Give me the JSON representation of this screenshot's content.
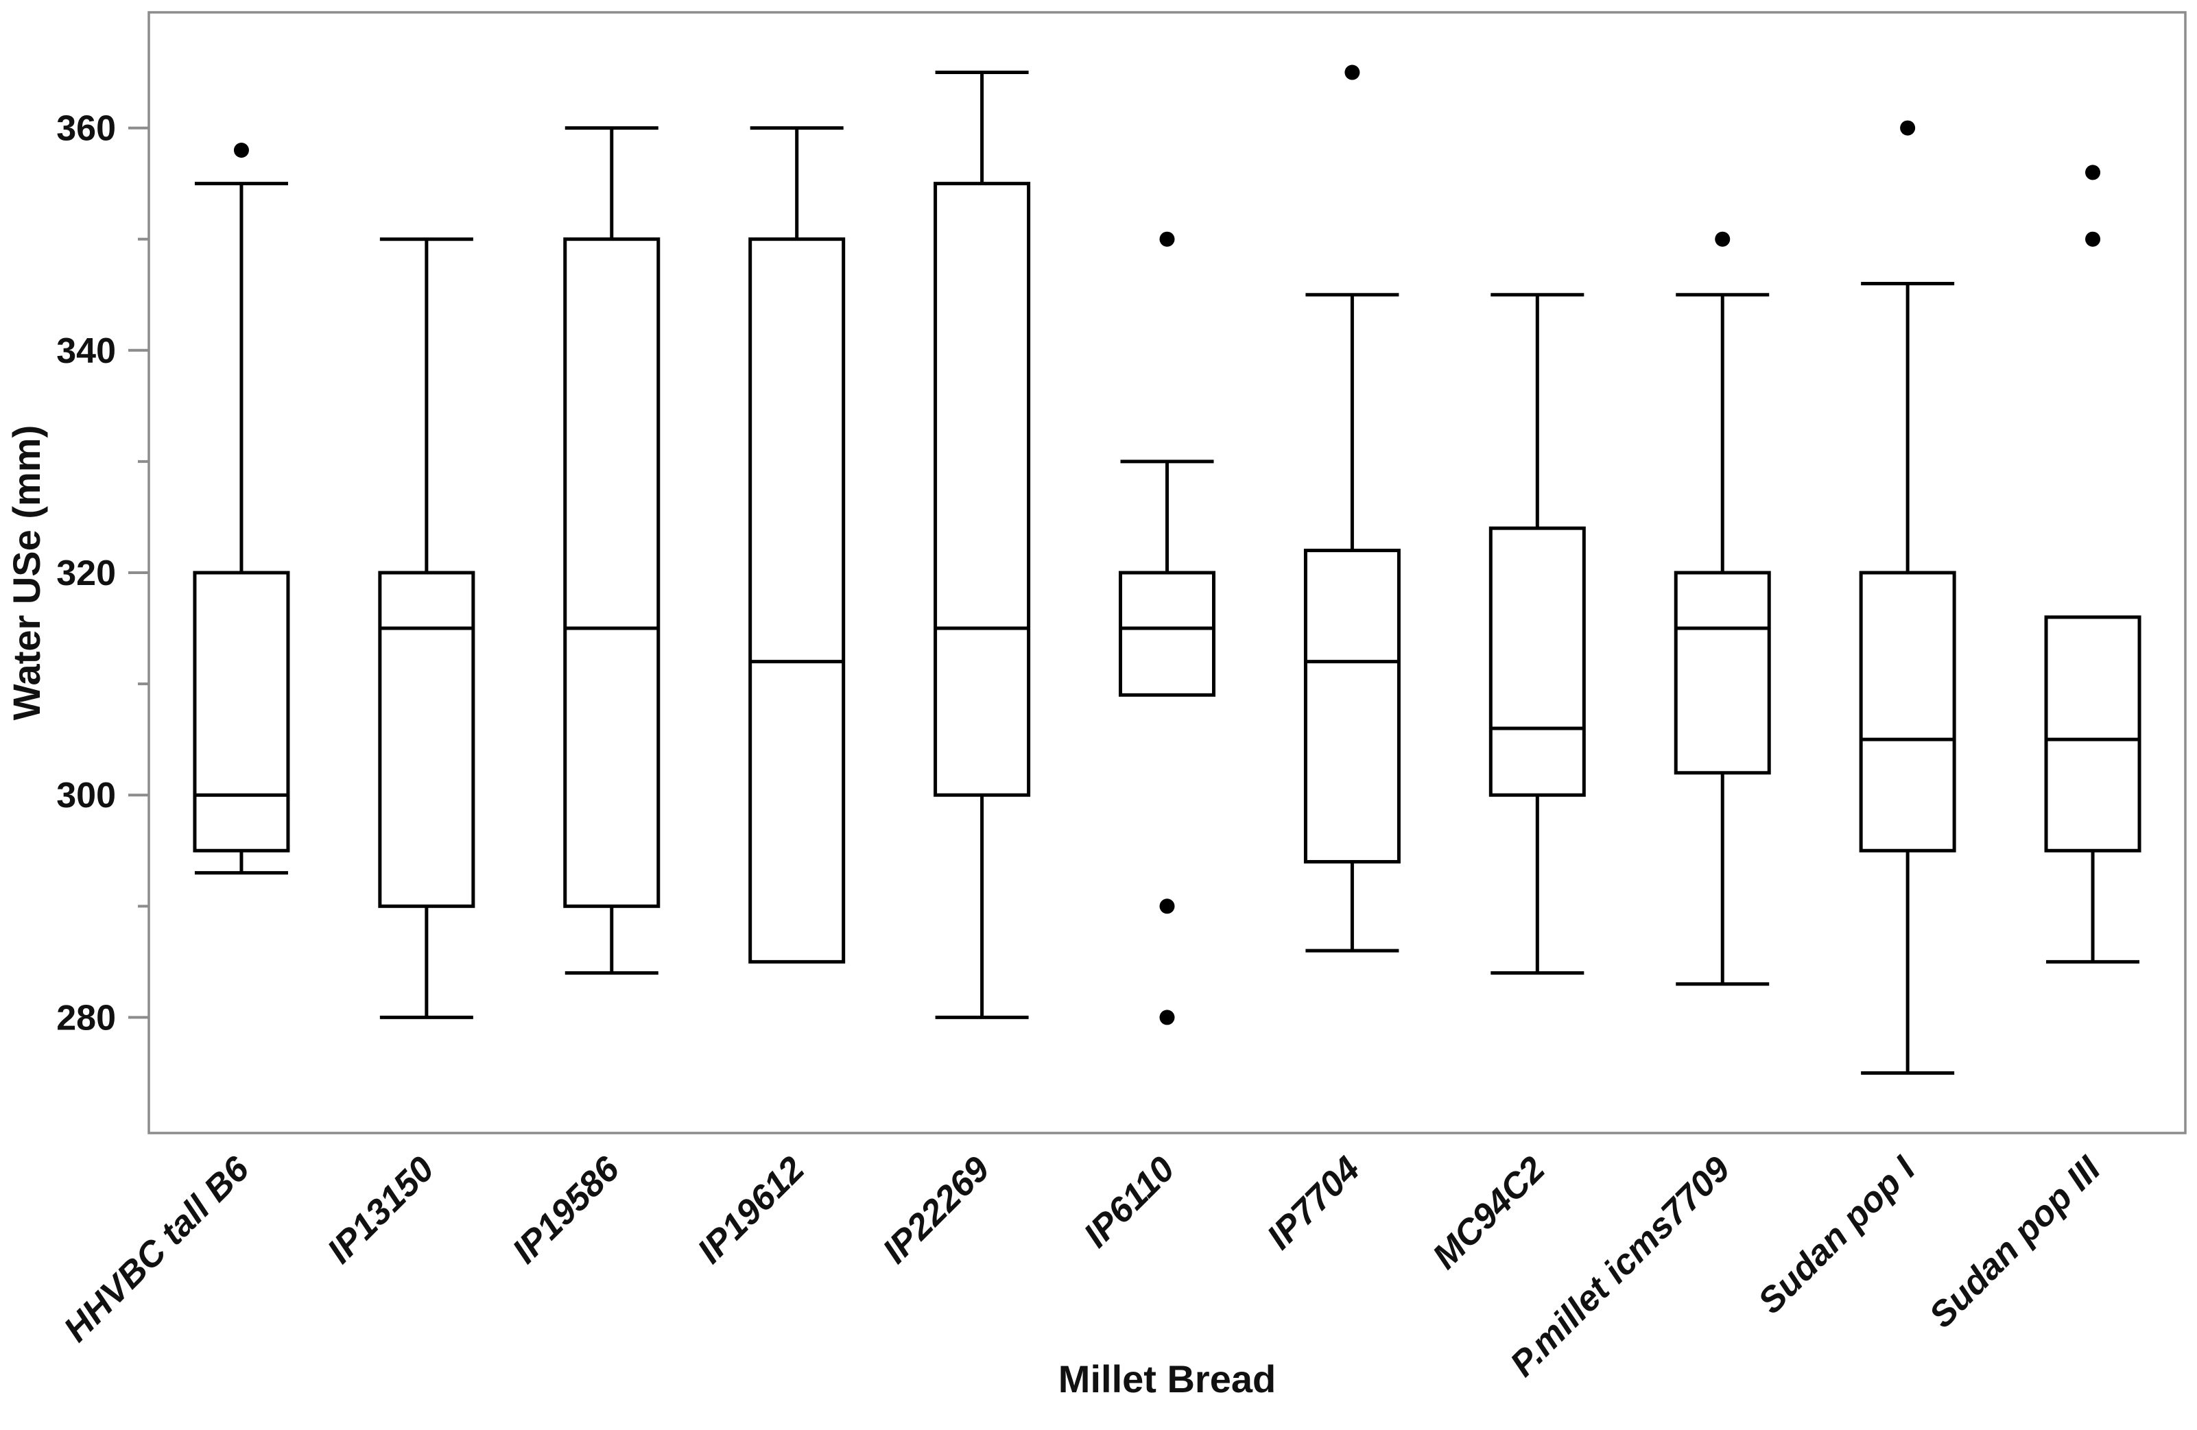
{
  "figure": {
    "kind": "statistical-boxplot-figure",
    "background_color": "#ffffff",
    "frame_color": "#8c8c8c",
    "box_stroke_color": "#000000",
    "outlier_color": "#000000"
  },
  "chart_data": {
    "type": "boxplot",
    "title": "",
    "xlabel": "Millet Bread",
    "ylabel": "Water USe (mm)",
    "ylim": [
      269.6,
      370.4
    ],
    "yticks_major": [
      280,
      300,
      320,
      340,
      360
    ],
    "yticks_minor": [
      290,
      310,
      330,
      350
    ],
    "grid": "off",
    "legend": "none",
    "categories": [
      "HHVBC tall B6",
      "IP13150",
      "IP19586",
      "IP19612",
      "IP22269",
      "IP6110",
      "IP7704",
      "MC94C2",
      "P.millet icms7709",
      "Sudan pop I",
      "Sudan pop III"
    ],
    "series": [
      {
        "name": "HHVBC tall B6",
        "whisker_low": 293,
        "q1": 295,
        "median": 300,
        "q3": 320,
        "whisker_high": 355,
        "outliers": [
          358
        ]
      },
      {
        "name": "IP13150",
        "whisker_low": 280,
        "q1": 290,
        "median": 315,
        "q3": 320,
        "whisker_high": 350,
        "outliers": []
      },
      {
        "name": "IP19586",
        "whisker_low": 284,
        "q1": 290,
        "median": 315,
        "q3": 350,
        "whisker_high": 360,
        "outliers": []
      },
      {
        "name": "IP19612",
        "whisker_low": 285,
        "q1": 285,
        "median": 312,
        "q3": 350,
        "whisker_high": 360,
        "outliers": []
      },
      {
        "name": "IP22269",
        "whisker_low": 280,
        "q1": 300,
        "median": 315,
        "q3": 355,
        "whisker_high": 365,
        "outliers": []
      },
      {
        "name": "IP6110",
        "whisker_low": 309,
        "q1": 309,
        "median": 315,
        "q3": 320,
        "whisker_high": 330,
        "outliers": [
          350,
          290,
          280
        ]
      },
      {
        "name": "IP7704",
        "whisker_low": 286,
        "q1": 294,
        "median": 312,
        "q3": 322,
        "whisker_high": 345,
        "outliers": [
          365
        ]
      },
      {
        "name": "MC94C2",
        "whisker_low": 284,
        "q1": 300,
        "median": 306,
        "q3": 324,
        "whisker_high": 345,
        "outliers": []
      },
      {
        "name": "P.millet icms7709",
        "whisker_low": 283,
        "q1": 302,
        "median": 315,
        "q3": 320,
        "whisker_high": 345,
        "outliers": [
          350
        ]
      },
      {
        "name": "Sudan pop I",
        "whisker_low": 275,
        "q1": 295,
        "median": 305,
        "q3": 320,
        "whisker_high": 346,
        "outliers": [
          360
        ]
      },
      {
        "name": "Sudan pop III",
        "whisker_low": 285,
        "q1": 295,
        "median": 305,
        "q3": 316,
        "whisker_high": 316,
        "outliers": [
          356,
          350
        ]
      }
    ]
  }
}
